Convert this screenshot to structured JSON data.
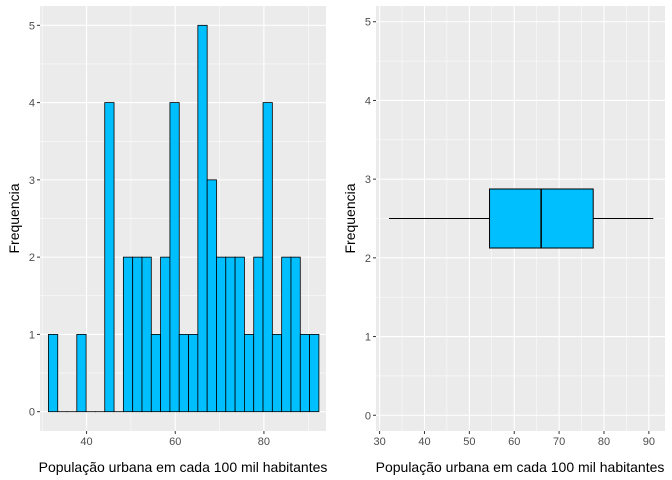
{
  "colors": {
    "panel_bg": "#ebebeb",
    "grid_major": "#ffffff",
    "fill": "#00bfff",
    "outline": "#000000",
    "tick_text": "#4d4d4d",
    "tick_mark": "#333333"
  },
  "chart_data": [
    {
      "type": "bar",
      "subtype": "histogram",
      "xlabel": "População urbana em cada 100 mil habitantes",
      "ylabel": "Frequencia",
      "xlim": [
        29.5,
        94
      ],
      "ylim": [
        -0.25,
        5.25
      ],
      "x_ticks": [
        40,
        60,
        80
      ],
      "y_ticks": [
        0,
        1,
        2,
        3,
        4,
        5
      ],
      "grid": true,
      "bins": [
        {
          "x0": 31.4,
          "x1": 33.5,
          "count": 1
        },
        {
          "x0": 33.5,
          "x1": 35.6,
          "count": 0
        },
        {
          "x0": 35.6,
          "x1": 37.8,
          "count": 0
        },
        {
          "x0": 37.8,
          "x1": 39.9,
          "count": 1
        },
        {
          "x0": 39.9,
          "x1": 42.0,
          "count": 0
        },
        {
          "x0": 42.0,
          "x1": 44.1,
          "count": 0
        },
        {
          "x0": 44.1,
          "x1": 46.2,
          "count": 4
        },
        {
          "x0": 46.2,
          "x1": 48.3,
          "count": 0
        },
        {
          "x0": 48.3,
          "x1": 50.4,
          "count": 2
        },
        {
          "x0": 50.4,
          "x1": 52.5,
          "count": 2
        },
        {
          "x0": 52.5,
          "x1": 54.6,
          "count": 2
        },
        {
          "x0": 54.6,
          "x1": 56.7,
          "count": 1
        },
        {
          "x0": 56.7,
          "x1": 58.8,
          "count": 2
        },
        {
          "x0": 58.8,
          "x1": 60.9,
          "count": 4
        },
        {
          "x0": 60.9,
          "x1": 63.0,
          "count": 1
        },
        {
          "x0": 63.0,
          "x1": 65.1,
          "count": 1
        },
        {
          "x0": 65.1,
          "x1": 67.2,
          "count": 5
        },
        {
          "x0": 67.2,
          "x1": 69.3,
          "count": 3
        },
        {
          "x0": 69.3,
          "x1": 71.4,
          "count": 2
        },
        {
          "x0": 71.4,
          "x1": 73.5,
          "count": 2
        },
        {
          "x0": 73.5,
          "x1": 75.6,
          "count": 2
        },
        {
          "x0": 75.6,
          "x1": 77.7,
          "count": 1
        },
        {
          "x0": 77.7,
          "x1": 79.8,
          "count": 2
        },
        {
          "x0": 79.8,
          "x1": 81.9,
          "count": 4
        },
        {
          "x0": 81.9,
          "x1": 84.0,
          "count": 1
        },
        {
          "x0": 84.0,
          "x1": 86.1,
          "count": 2
        },
        {
          "x0": 86.1,
          "x1": 88.2,
          "count": 2
        },
        {
          "x0": 88.2,
          "x1": 90.3,
          "count": 1
        },
        {
          "x0": 90.3,
          "x1": 92.4,
          "count": 1
        }
      ]
    },
    {
      "type": "box",
      "orientation": "horizontal",
      "xlabel": "População urbana em cada 100 mil habitantes",
      "ylabel": "Frequencia",
      "xlim": [
        29.2,
        93.6
      ],
      "ylim": [
        -0.2,
        5.2
      ],
      "x_ticks": [
        30,
        40,
        50,
        60,
        70,
        80,
        90
      ],
      "y_ticks": [
        0,
        1,
        2,
        3,
        4,
        5
      ],
      "grid": true,
      "box": {
        "whisker_low": 32.1,
        "q1": 54.5,
        "median": 66.0,
        "q3": 77.6,
        "whisker_high": 91.0,
        "y_center": 2.5,
        "y_halfwidth": 0.375
      }
    }
  ]
}
